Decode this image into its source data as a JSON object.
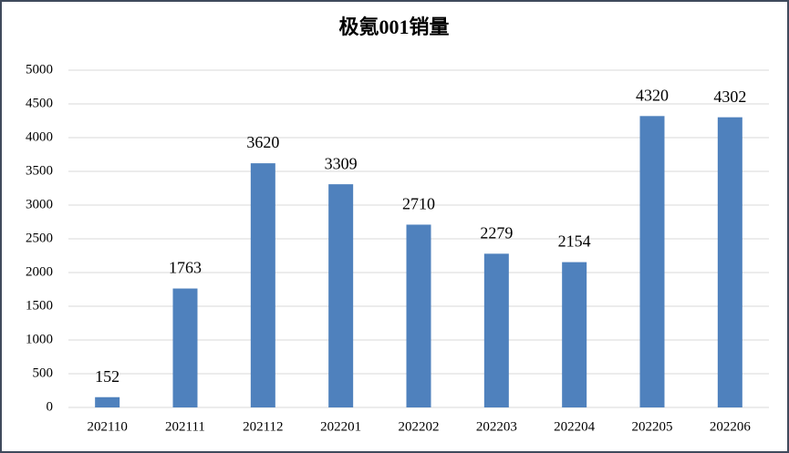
{
  "chart_data": {
    "type": "bar",
    "title": "极氪001销量",
    "categories": [
      "202110",
      "202111",
      "202112",
      "202201",
      "202202",
      "202203",
      "202204",
      "202205",
      "202206"
    ],
    "values": [
      152,
      1763,
      3620,
      3309,
      2710,
      2279,
      2154,
      4320,
      4302
    ],
    "color": "#4f81bd",
    "ylim": [
      0,
      5000
    ],
    "yticks": [
      0,
      500,
      1000,
      1500,
      2000,
      2500,
      3000,
      3500,
      4000,
      4500,
      5000
    ],
    "grid": true
  }
}
